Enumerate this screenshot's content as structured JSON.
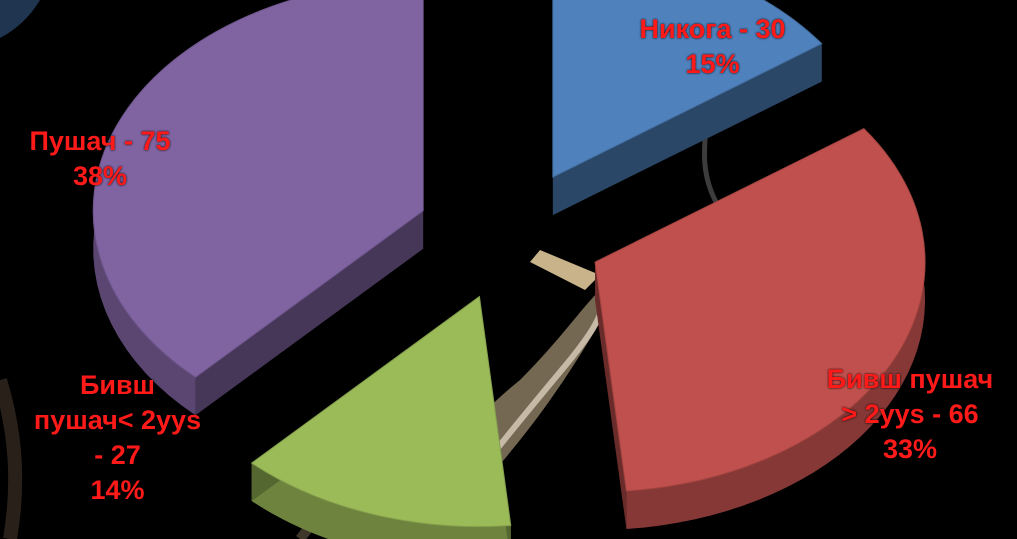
{
  "chart_data": {
    "type": "pie",
    "title": "",
    "exploded": true,
    "three_d": true,
    "slices": [
      {
        "label": "Никога - 30",
        "value": 30,
        "percent": "15%",
        "color": "#4f81bd"
      },
      {
        "label": "Бивш пушач > 2yys - 66",
        "value": 66,
        "percent": "33%",
        "color": "#c0504d"
      },
      {
        "label": "Бивш пушач< 2yys - 27",
        "value": 27,
        "percent": "14%",
        "color": "#9bbb59"
      },
      {
        "label": "Пушач - 75",
        "value": 75,
        "percent": "38%",
        "color": "#8064a2"
      }
    ],
    "label_color": "#ff1a1a"
  },
  "labels": {
    "never_name": "Никога - 30",
    "never_pct": "15%",
    "former_long_l1": "Бивш пушач",
    "former_long_l2": "> 2yys - 66",
    "former_long_pct": "33%",
    "former_short_l1": "Бивш",
    "former_short_l2": "пушач< 2yys",
    "former_short_l3": "- 27",
    "former_short_pct": "14%",
    "smoker_name": "Пушач - 75",
    "smoker_pct": "38%"
  }
}
